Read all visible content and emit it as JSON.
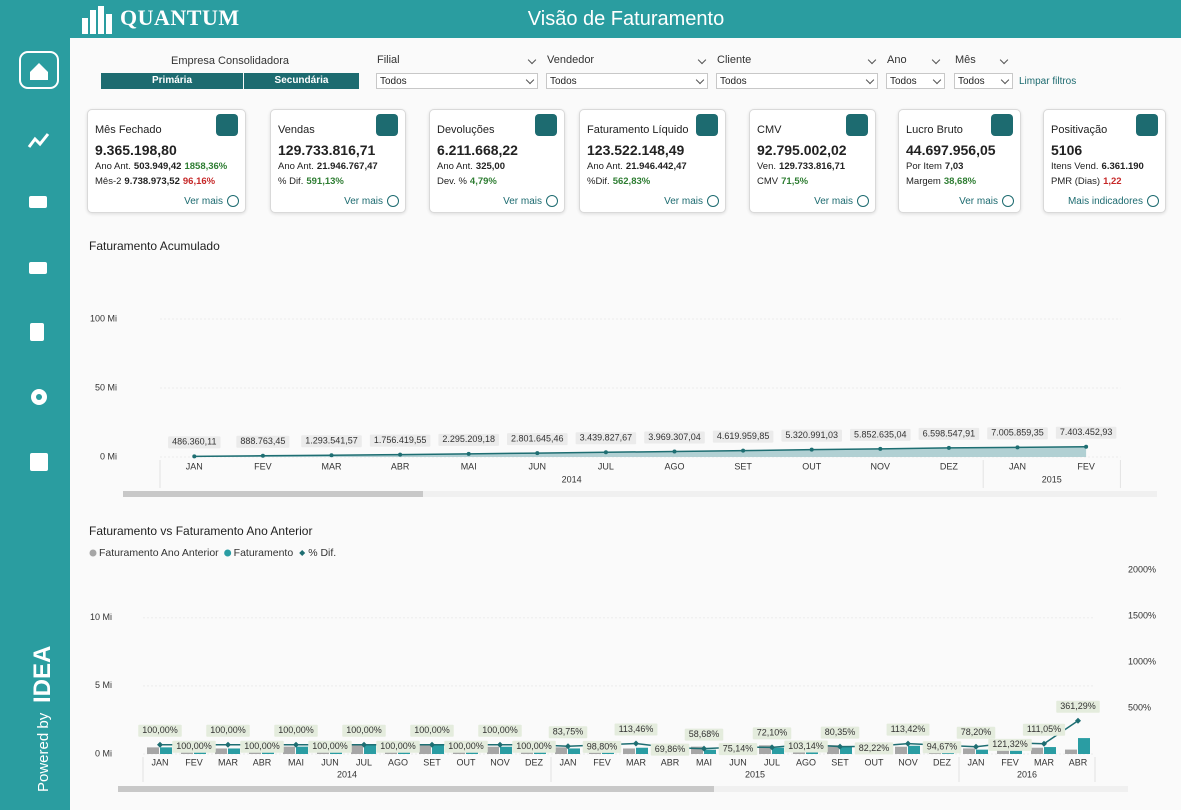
{
  "header": {
    "brand": "QUANTUM",
    "title": "Visão de Faturamento"
  },
  "sidebar": {
    "powered_by": "Powered by",
    "logo": "IDEA"
  },
  "filters": {
    "company": {
      "label": "Empresa Consolidadora",
      "options": [
        "Primária",
        "Secundária"
      ]
    },
    "dropdowns": [
      {
        "label": "Filial",
        "value": "Todos"
      },
      {
        "label": "Vendedor",
        "value": "Todos"
      },
      {
        "label": "Cliente",
        "value": "Todos"
      },
      {
        "label": "Ano",
        "value": "Todos"
      },
      {
        "label": "Mês",
        "value": "Todos"
      }
    ],
    "clear": "Limpar filtros"
  },
  "cards": [
    {
      "title": "Mês Fechado",
      "value": "9.365.198,80",
      "lines": [
        [
          {
            "text": "Ano Ant.",
            "style": "label"
          },
          {
            "text": "503.949,42",
            "style": "value"
          },
          {
            "text": "1858,36%",
            "style": "good"
          }
        ],
        [
          {
            "text": "Mês-2",
            "style": "label"
          },
          {
            "text": "9.738.973,52",
            "style": "value"
          },
          {
            "text": "96,16%",
            "style": "bad"
          }
        ]
      ],
      "link": "Ver mais"
    },
    {
      "title": "Vendas",
      "value": "129.733.816,71",
      "lines": [
        [
          {
            "text": "Ano Ant.",
            "style": "label"
          },
          {
            "text": "21.946.767,47",
            "style": "value"
          }
        ],
        [
          {
            "text": "% Dif.",
            "style": "label"
          },
          {
            "text": "591,13%",
            "style": "good"
          }
        ]
      ],
      "link": "Ver mais"
    },
    {
      "title": "Devoluções",
      "value": "6.211.668,22",
      "lines": [
        [
          {
            "text": "Ano Ant.",
            "style": "label"
          },
          {
            "text": "325,00",
            "style": "value"
          }
        ],
        [
          {
            "text": "Dev. %",
            "style": "label"
          },
          {
            "text": "4,79%",
            "style": "good"
          }
        ]
      ],
      "link": "Ver mais"
    },
    {
      "title": "Faturamento Líquido",
      "value": "123.522.148,49",
      "lines": [
        [
          {
            "text": "Ano Ant.",
            "style": "label"
          },
          {
            "text": "21.946.442,47",
            "style": "value"
          }
        ],
        [
          {
            "text": "%Dif.",
            "style": "label"
          },
          {
            "text": "562,83%",
            "style": "good"
          }
        ]
      ],
      "link": "Ver mais"
    },
    {
      "title": "CMV",
      "value": "92.795.002,02",
      "lines": [
        [
          {
            "text": "Ven.",
            "style": "label"
          },
          {
            "text": "129.733.816,71",
            "style": "value"
          }
        ],
        [
          {
            "text": "CMV",
            "style": "label"
          },
          {
            "text": "71,5%",
            "style": "good"
          }
        ]
      ],
      "link": "Ver mais"
    },
    {
      "title": "Lucro Bruto",
      "value": "44.697.956,05",
      "lines": [
        [
          {
            "text": "Por Item",
            "style": "label"
          },
          {
            "text": "7,03",
            "style": "value"
          }
        ],
        [
          {
            "text": "Margem",
            "style": "label"
          },
          {
            "text": "38,68%",
            "style": "good"
          }
        ]
      ],
      "link": "Ver mais"
    },
    {
      "title": "Positivação",
      "value": "5106",
      "lines": [
        [
          {
            "text": "Itens Vend.",
            "style": "label"
          },
          {
            "text": "6.361.190",
            "style": "value"
          }
        ],
        [
          {
            "text": "PMR (Dias)",
            "style": "label"
          },
          {
            "text": "1,22",
            "style": "bad"
          }
        ]
      ],
      "link": "Mais indicadores"
    }
  ],
  "chart_data": [
    {
      "type": "area",
      "title": "Faturamento Acumulado",
      "category_groups": [
        {
          "label": "2014",
          "categories": [
            "JAN",
            "FEV",
            "MAR",
            "ABR",
            "MAI",
            "JUN",
            "JUL",
            "AGO",
            "SET",
            "OUT",
            "NOV",
            "DEZ"
          ]
        },
        {
          "label": "2015",
          "categories": [
            "JAN",
            "FEV"
          ]
        }
      ],
      "values": [
        486360.11,
        888763.45,
        1293541.57,
        1756419.55,
        2295209.18,
        2801645.46,
        3439827.67,
        3969307.04,
        4619959.85,
        5320991.03,
        5852635.04,
        6598547.91,
        7005859.35,
        7403452.93
      ],
      "value_labels": [
        "486.360,11",
        "888.763,45",
        "1.293.541,57",
        "1.756.419,55",
        "2.295.209,18",
        "2.801.645,46",
        "3.439.827,67",
        "3.969.307,04",
        "4.619.959,85",
        "5.320.991,03",
        "5.852.635,04",
        "6.598.547,91",
        "7.005.859,35",
        "7.403.452,93"
      ],
      "color": "#1e6e72",
      "fill": "#a8cbce",
      "ylim": [
        0,
        120000000
      ],
      "yticks": [
        {
          "value": 0,
          "label": "0 Mi"
        },
        {
          "value": 50000000,
          "label": "50 Mi"
        },
        {
          "value": 100000000,
          "label": "100 Mi"
        }
      ],
      "grid": true
    },
    {
      "type": "combo",
      "title": "Faturamento vs Faturamento Ano Anterior",
      "category_groups": [
        {
          "label": "2014",
          "categories": [
            "JAN",
            "FEV",
            "MAR",
            "ABR",
            "MAI",
            "JUN",
            "JUL",
            "AGO",
            "SET",
            "OUT",
            "NOV",
            "DEZ"
          ]
        },
        {
          "label": "2015",
          "categories": [
            "JAN",
            "FEV",
            "MAR",
            "ABR",
            "MAI",
            "JUN",
            "JUL",
            "AGO",
            "SET",
            "OUT",
            "NOV",
            "DEZ"
          ]
        },
        {
          "label": "2016",
          "categories": [
            "JAN",
            "FEV",
            "MAR",
            "ABR"
          ]
        }
      ],
      "series": [
        {
          "name": "Faturamento Ano Anterior",
          "type": "bar",
          "color": "#a6a6a6",
          "values": [
            486360,
            402403,
            404778,
            462878,
            538790,
            506436,
            638182,
            529479,
            650653,
            701031,
            531644,
            745913,
            486360,
            402403,
            404778,
            462878,
            538790,
            506436,
            638182,
            529479,
            650653,
            701031,
            531644,
            745913,
            407311,
            397594,
            459261,
            323367
          ]
        },
        {
          "name": "Faturamento",
          "type": "bar",
          "color": "#2a9da3",
          "values": [
            486360,
            402403,
            404778,
            462878,
            538790,
            506436,
            638182,
            529479,
            650653,
            701031,
            531644,
            745913,
            407311,
            397594,
            459261,
            323367,
            316162,
            380536,
            460129,
            546105,
            522800,
            576388,
            602991,
            706156,
            318517,
            482361,
            510009,
            1168291
          ]
        },
        {
          "name": "% Dif.",
          "type": "line",
          "axis": "y2",
          "color": "#1e6e72",
          "values": [
            100,
            100,
            100,
            100,
            100,
            100,
            100,
            100,
            100,
            100,
            100,
            100,
            83.75,
            98.8,
            113.46,
            69.86,
            58.68,
            75.14,
            72.1,
            103.14,
            80.35,
            82.22,
            113.42,
            94.67,
            78.2,
            121.32,
            111.05,
            361.29
          ],
          "value_labels": [
            "100,00%",
            "100,00%",
            "100,00%",
            "100,00%",
            "100,00%",
            "100,00%",
            "100,00%",
            "100,00%",
            "100,00%",
            "100,00%",
            "100,00%",
            "100,00%",
            "83,75%",
            "98,80%",
            "113,46%",
            "69,86%",
            "58,68%",
            "75,14%",
            "72,10%",
            "103,14%",
            "80,35%",
            "82,22%",
            "113,42%",
            "94,67%",
            "78,20%",
            "121,32%",
            "111,05%",
            "361,29%"
          ]
        }
      ],
      "ylim": [
        0,
        13500000
      ],
      "yticks": [
        {
          "value": 0,
          "label": "0 Mi"
        },
        {
          "value": 5000000,
          "label": "5 Mi"
        },
        {
          "value": 10000000,
          "label": "10 Mi"
        }
      ],
      "y2lim": [
        0,
        2000
      ],
      "y2ticks": [
        {
          "value": 500,
          "label": "500%"
        },
        {
          "value": 1000,
          "label": "1000%"
        },
        {
          "value": 1500,
          "label": "1500%"
        },
        {
          "value": 2000,
          "label": "2000%"
        }
      ],
      "legend": "top-left",
      "grid": true
    }
  ]
}
